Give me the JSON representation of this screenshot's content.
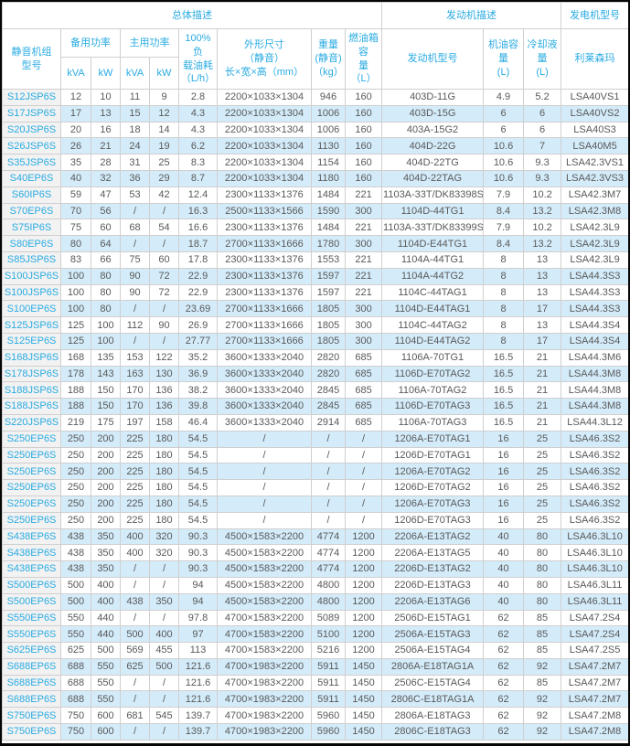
{
  "colors": {
    "accent_cyan": "#29abe2",
    "stripe_blue": "#d4ecfa",
    "model_col_gray": "#f2f2f2",
    "body_text": "#595959",
    "grid_line": "#cfcfcf",
    "outer_border": "#060606"
  },
  "table": {
    "top": {
      "overall": "总体描述",
      "engine": "发动机描述",
      "generator": "发电机型号"
    },
    "groups": {
      "model": "静音机组\n型号",
      "standby": "备用功率",
      "prime": "主用功率",
      "load_fuel": "100%负\n载油耗\n（L/h）",
      "dimensions": "外形尺寸\n（静音）\n长×宽×高（mm）",
      "weight": "重量\n(静音)\n（kg）",
      "tank": "燃油箱容\n量\n（L）",
      "engine_model": "发动机型号",
      "oil": "机油容量\n(L)",
      "coolant": "冷却液量\n(L)",
      "alternator": "利莱森玛"
    },
    "units": {
      "standby_kva": "kVA",
      "standby_kw": "kW",
      "prime_kva": "kVA",
      "prime_kw": "kW"
    },
    "rows": [
      [
        "S12JSP6S",
        "12",
        "10",
        "11",
        "9",
        "2.8",
        "2200×1033×1304",
        "946",
        "160",
        "403D-11G",
        "4.9",
        "5.2",
        "LSA40VS1"
      ],
      [
        "S17JSP6S",
        "17",
        "13",
        "15",
        "12",
        "4.3",
        "2200×1033×1304",
        "1006",
        "160",
        "403D-15G",
        "6",
        "6",
        "LSA40VS2"
      ],
      [
        "S20JSP6S",
        "20",
        "16",
        "18",
        "14",
        "4.3",
        "2200×1033×1304",
        "1006",
        "160",
        "403A-15G2",
        "6",
        "6",
        "LSA40S3"
      ],
      [
        "S26JSP6S",
        "26",
        "21",
        "24",
        "19",
        "6.2",
        "2200×1033×1304",
        "1130",
        "160",
        "404D-22G",
        "10.6",
        "7",
        "LSA40M5"
      ],
      [
        "S35JSP6S",
        "35",
        "28",
        "31",
        "25",
        "8.3",
        "2200×1033×1304",
        "1154",
        "160",
        "404D-22TG",
        "10.6",
        "9.3",
        "LSA42.3VS1"
      ],
      [
        "S40EP6S",
        "40",
        "32",
        "36",
        "29",
        "8.7",
        "2200×1033×1304",
        "1180",
        "160",
        "404D-22TAG",
        "10.6",
        "9.3",
        "LSA42.3VS3"
      ],
      [
        "S60IP6S",
        "59",
        "47",
        "53",
        "42",
        "12.4",
        "2300×1133×1376",
        "1484",
        "221",
        "1103A-33T/DK83398S",
        "7.9",
        "10.2",
        "LSA42.3M7"
      ],
      [
        "S70EP6S",
        "70",
        "56",
        "/",
        "/",
        "16.3",
        "2500×1133×1566",
        "1590",
        "300",
        "1104D-44TG1",
        "8.4",
        "13.2",
        "LSA42.3M8"
      ],
      [
        "S75IP6S",
        "75",
        "60",
        "68",
        "54",
        "16.6",
        "2300×1133×1376",
        "1484",
        "221",
        "1103A-33T/DK83399S",
        "7.9",
        "10.2",
        "LSA42.3L9"
      ],
      [
        "S80EP6S",
        "80",
        "64",
        "/",
        "/",
        "18.7",
        "2700×1133×1666",
        "1780",
        "300",
        "1104D-E44TG1",
        "8.4",
        "13.2",
        "LSA42.3L9"
      ],
      [
        "S85JSP6S",
        "83",
        "66",
        "75",
        "60",
        "17.8",
        "2300×1133×1376",
        "1553",
        "221",
        "1104A-44TG1",
        "8",
        "13",
        "LSA42.3L9"
      ],
      [
        "S100JSP6S",
        "100",
        "80",
        "90",
        "72",
        "22.9",
        "2300×1133×1376",
        "1597",
        "221",
        "1104A-44TG2",
        "8",
        "13",
        "LSA44.3S3"
      ],
      [
        "S100JSP6S",
        "100",
        "80",
        "90",
        "72",
        "22.9",
        "2300×1133×1376",
        "1597",
        "221",
        "1104C-44TAG1",
        "8",
        "13",
        "LSA44.3S3"
      ],
      [
        "S100EP6S",
        "100",
        "80",
        "/",
        "/",
        "23.69",
        "2700×1133×1666",
        "1805",
        "300",
        "1104D-E44TAG1",
        "8",
        "17",
        "LSA44.3S3"
      ],
      [
        "S125JSP6S",
        "125",
        "100",
        "112",
        "90",
        "26.9",
        "2700×1133×1666",
        "1805",
        "300",
        "1104C-44TAG2",
        "8",
        "13",
        "LSA44.3S4"
      ],
      [
        "S125EP6S",
        "125",
        "100",
        "/",
        "/",
        "27.77",
        "2700×1133×1666",
        "1805",
        "300",
        "1104D-E44TAG2",
        "8",
        "17",
        "LSA44.3S4"
      ],
      [
        "S168JSP6S",
        "168",
        "135",
        "153",
        "122",
        "35.2",
        "3600×1333×2040",
        "2820",
        "685",
        "1106A-70TG1",
        "16.5",
        "21",
        "LSA44.3M6"
      ],
      [
        "S178JSP6S",
        "178",
        "143",
        "163",
        "130",
        "36.9",
        "3600×1333×2040",
        "2820",
        "685",
        "1106D-E70TAG2",
        "16.5",
        "21",
        "LSA44.3M8"
      ],
      [
        "S188JSP6S",
        "188",
        "150",
        "170",
        "136",
        "38.2",
        "3600×1333×2040",
        "2845",
        "685",
        "1106A-70TAG2",
        "16.5",
        "21",
        "LSA44.3M8"
      ],
      [
        "S188JSP6S",
        "188",
        "150",
        "170",
        "136",
        "39.8",
        "3600×1333×2040",
        "2845",
        "685",
        "1106D-E70TAG3",
        "16.5",
        "21",
        "LSA44.3M8"
      ],
      [
        "S220JSP6S",
        "219",
        "175",
        "197",
        "158",
        "46.4",
        "3600×1333×2040",
        "2914",
        "685",
        "1106A-70TAG3",
        "16.5",
        "21",
        "LSA44.3L12"
      ],
      [
        "S250EP6S",
        "250",
        "200",
        "225",
        "180",
        "54.5",
        "/",
        "/",
        "/",
        "1206A-E70TAG1",
        "16",
        "25",
        "LSA46.3S2"
      ],
      [
        "S250EP6S",
        "250",
        "200",
        "225",
        "180",
        "54.5",
        "/",
        "/",
        "/",
        "1206D-E70TAG1",
        "16",
        "25",
        "LSA46.3S2"
      ],
      [
        "S250EP6S",
        "250",
        "200",
        "225",
        "180",
        "54.5",
        "/",
        "/",
        "/",
        "1206A-E70TAG2",
        "16",
        "25",
        "LSA46.3S2"
      ],
      [
        "S250EP6S",
        "250",
        "200",
        "225",
        "180",
        "54.5",
        "/",
        "/",
        "/",
        "1206D-E70TAG2",
        "16",
        "25",
        "LSA46.3S2"
      ],
      [
        "S250EP6S",
        "250",
        "200",
        "225",
        "180",
        "54.5",
        "/",
        "/",
        "/",
        "1206A-E70TAG3",
        "16",
        "25",
        "LSA46.3S2"
      ],
      [
        "S250EP6S",
        "250",
        "200",
        "225",
        "180",
        "54.5",
        "/",
        "/",
        "/",
        "1206D-E70TAG3",
        "16",
        "25",
        "LSA46.3S2"
      ],
      [
        "S438EP6S",
        "438",
        "350",
        "400",
        "320",
        "90.3",
        "4500×1583×2200",
        "4774",
        "1200",
        "2206A-E13TAG2",
        "40",
        "80",
        "LSA46.3L10"
      ],
      [
        "S438EP6S",
        "438",
        "350",
        "400",
        "320",
        "90.3",
        "4500×1583×2200",
        "4774",
        "1200",
        "2206A-E13TAG5",
        "40",
        "80",
        "LSA46.3L10"
      ],
      [
        "S438EP6S",
        "438",
        "350",
        "/",
        "/",
        "90.3",
        "4500×1583×2200",
        "4774",
        "1200",
        "2206D-E13TAG2",
        "40",
        "80",
        "LSA46.3L10"
      ],
      [
        "S500EP6S",
        "500",
        "400",
        "/",
        "/",
        "94",
        "4500×1583×2200",
        "4800",
        "1200",
        "2206D-E13TAG3",
        "40",
        "80",
        "LSA46.3L11"
      ],
      [
        "S500EP6S",
        "500",
        "400",
        "438",
        "350",
        "94",
        "4500×1583×2200",
        "4800",
        "1200",
        "2206A-E13TAG6",
        "40",
        "80",
        "LSA46.3L11"
      ],
      [
        "S550EP6S",
        "550",
        "440",
        "/",
        "/",
        "97.8",
        "4700×1583×2200",
        "5089",
        "1200",
        "2506D-E15TAG1",
        "62",
        "85",
        "LSA47.2S4"
      ],
      [
        "S550EP6S",
        "550",
        "440",
        "500",
        "400",
        "97",
        "4700×1583×2200",
        "5100",
        "1200",
        "2506A-E15TAG3",
        "62",
        "85",
        "LSA47.2S4"
      ],
      [
        "S625EP6S",
        "625",
        "500",
        "569",
        "455",
        "113",
        "4700×1583×2200",
        "5216",
        "1200",
        "2506A-E15TAG4",
        "62",
        "85",
        "LSA47.2S5"
      ],
      [
        "S688EP6S",
        "688",
        "550",
        "625",
        "500",
        "121.6",
        "4700×1983×2200",
        "5911",
        "1450",
        "2806A-E18TAG1A",
        "62",
        "92",
        "LSA47.2M7"
      ],
      [
        "S688EP6S",
        "688",
        "550",
        "/",
        "/",
        "121.6",
        "4700×1983×2200",
        "5911",
        "1450",
        "2506C-E15TAG4",
        "62",
        "85",
        "LSA47.2M7"
      ],
      [
        "S688EP6S",
        "688",
        "550",
        "/",
        "/",
        "121.6",
        "4700×1983×2200",
        "5911",
        "1450",
        "2806C-E18TAG1A",
        "62",
        "92",
        "LSA47.2M7"
      ],
      [
        "S750EP6S",
        "750",
        "600",
        "681",
        "545",
        "139.7",
        "4700×1983×2200",
        "5960",
        "1450",
        "2806A-E18TAG3",
        "62",
        "92",
        "LSA47.2M8"
      ],
      [
        "S750EP6S",
        "750",
        "600",
        "/",
        "/",
        "139.7",
        "4700×1983×2200",
        "5960",
        "1450",
        "2806C-E18TAG3",
        "62",
        "92",
        "LSA47.2M8"
      ]
    ]
  }
}
